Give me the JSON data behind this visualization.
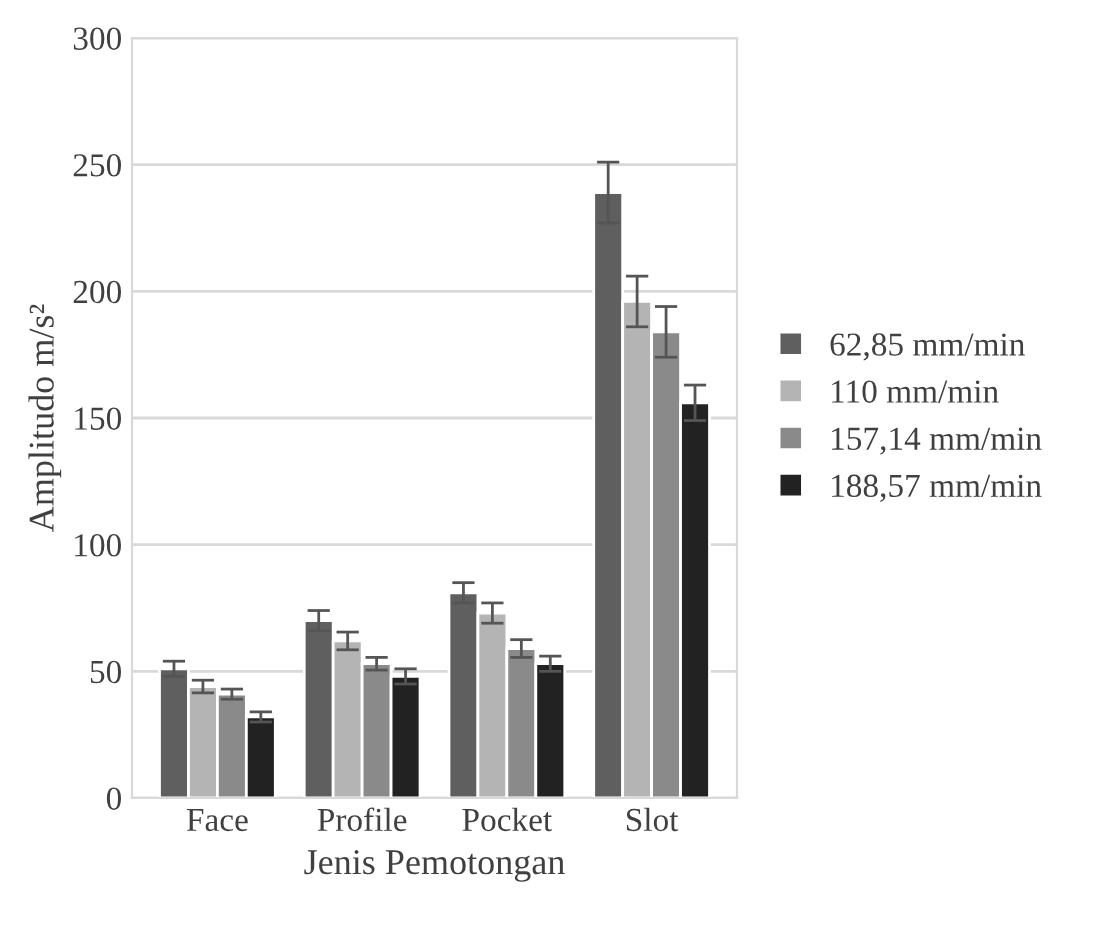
{
  "chart_data": {
    "type": "bar",
    "xlabel": "Jenis Pemotongan",
    "ylabel": "Amplitudo m/s²",
    "categories": [
      "Face",
      "Profile",
      "Pocket",
      "Slot"
    ],
    "series": [
      {
        "name": "62,85 mm/min",
        "color": "#5f5f5f",
        "values": [
          51,
          70,
          81,
          239
        ],
        "errors": [
          3,
          4,
          4,
          12
        ]
      },
      {
        "name": "110 mm/min",
        "color": "#b4b4b4",
        "values": [
          44,
          62,
          73,
          196
        ],
        "errors": [
          2.5,
          3.5,
          4,
          10
        ]
      },
      {
        "name": "157,14 mm/min",
        "color": "#8a8a8a",
        "values": [
          41,
          53,
          59,
          184
        ],
        "errors": [
          2,
          2.5,
          3.5,
          10
        ]
      },
      {
        "name": "188,57 mm/min",
        "color": "#222222",
        "values": [
          32,
          48,
          53,
          156
        ],
        "errors": [
          2,
          3,
          3,
          7
        ]
      }
    ],
    "ylim": [
      0,
      300
    ],
    "yticks": [
      0,
      50,
      100,
      150,
      200,
      250,
      300
    ],
    "grid": "y",
    "legend": "right"
  }
}
